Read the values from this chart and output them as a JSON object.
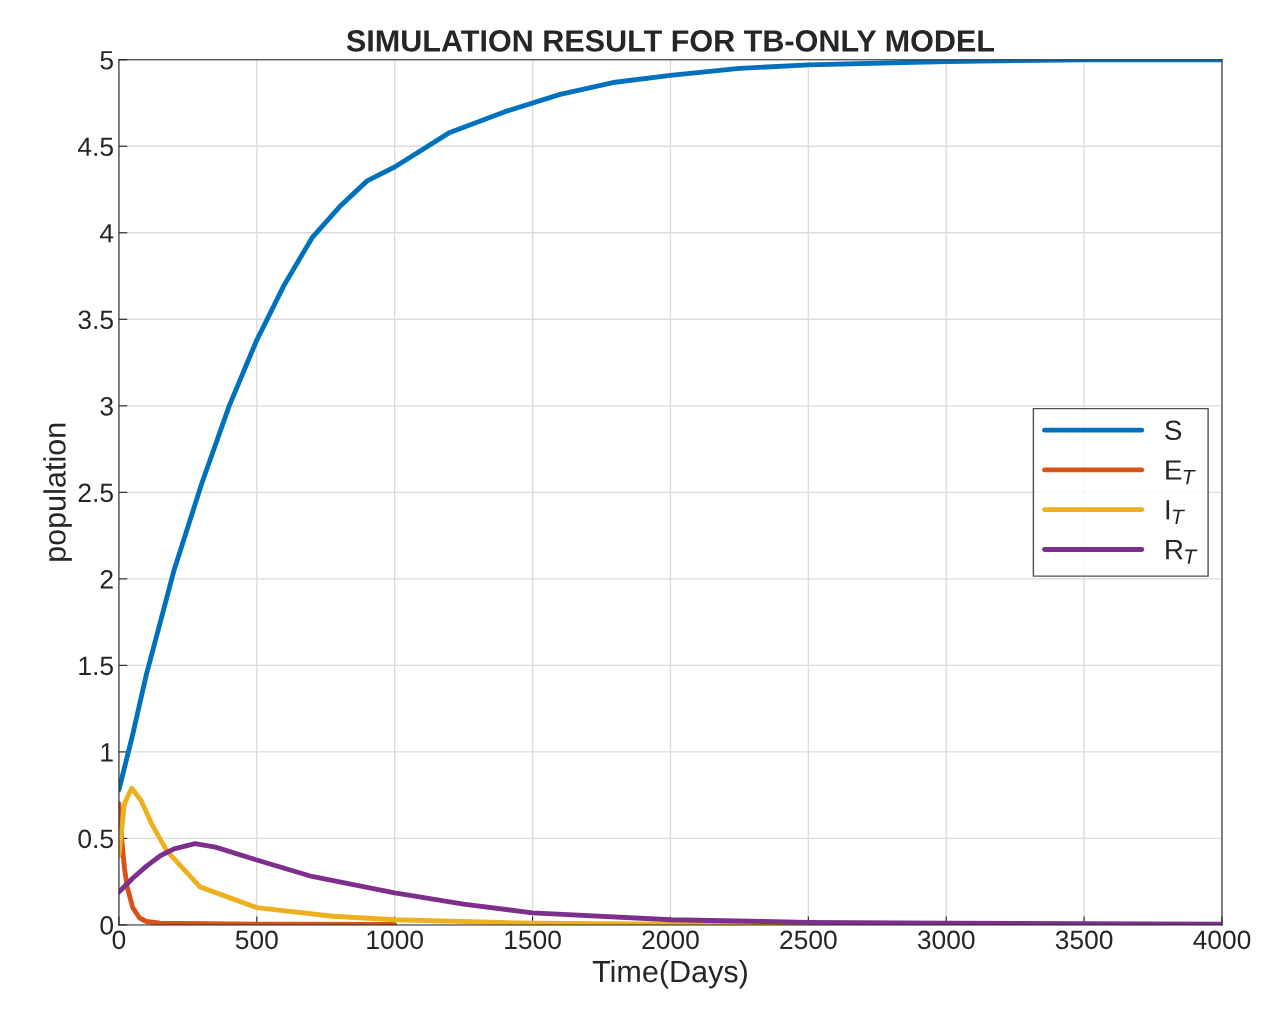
{
  "chart_data": {
    "type": "line",
    "title": "SIMULATION RESULT FOR TB-ONLY MODEL",
    "xlabel": "Time(Days)",
    "ylabel": "population",
    "xlim": [
      0,
      4000
    ],
    "xticks": [
      0,
      500,
      1000,
      1500,
      2000,
      2500,
      3000,
      3500,
      4000
    ],
    "ylim": [
      0,
      5
    ],
    "yticks": [
      0,
      0.5,
      1,
      1.5,
      2,
      2.5,
      3,
      3.5,
      4,
      4.5,
      5
    ],
    "grid": true,
    "legend": "right",
    "line_style": "solid",
    "marker": "none",
    "series": [
      {
        "name": "S",
        "color": "#0072bd",
        "x": [
          0,
          50,
          100,
          200,
          300,
          400,
          500,
          600,
          700,
          800,
          900,
          1000,
          1200,
          1400,
          1600,
          1800,
          2000,
          2250,
          2500,
          3000,
          3500,
          4000
        ],
        "values": [
          0.78,
          1.1,
          1.45,
          2.05,
          2.55,
          3.0,
          3.38,
          3.7,
          3.97,
          4.15,
          4.3,
          4.38,
          4.58,
          4.7,
          4.8,
          4.87,
          4.91,
          4.95,
          4.97,
          4.99,
          5.0,
          5.0
        ]
      },
      {
        "name": "E$_{T}$",
        "color": "#d95319",
        "x": [
          0,
          10,
          20,
          30,
          50,
          75,
          100,
          150,
          500,
          1000
        ],
        "values": [
          0.7,
          0.5,
          0.33,
          0.22,
          0.1,
          0.04,
          0.02,
          0.01,
          0.005,
          0.003
        ]
      },
      {
        "name": "I$_{T}$",
        "color": "#edb120",
        "x": [
          0,
          20,
          46,
          80,
          120,
          173,
          294,
          500,
          776,
          1000,
          1500,
          2000,
          4000
        ],
        "values": [
          0.4,
          0.7,
          0.79,
          0.72,
          0.58,
          0.43,
          0.22,
          0.1,
          0.05,
          0.03,
          0.01,
          0.005,
          0
        ]
      },
      {
        "name": "R$_{T}$",
        "color": "#7e2f8e",
        "x": [
          0,
          50,
          100,
          150,
          200,
          276,
          350,
          500,
          700,
          1000,
          1250,
          1500,
          2000,
          2500,
          3000,
          4000
        ],
        "values": [
          0.19,
          0.27,
          0.34,
          0.4,
          0.44,
          0.47,
          0.45,
          0.375,
          0.28,
          0.185,
          0.12,
          0.07,
          0.03,
          0.015,
          0.01,
          0.005
        ]
      }
    ]
  }
}
